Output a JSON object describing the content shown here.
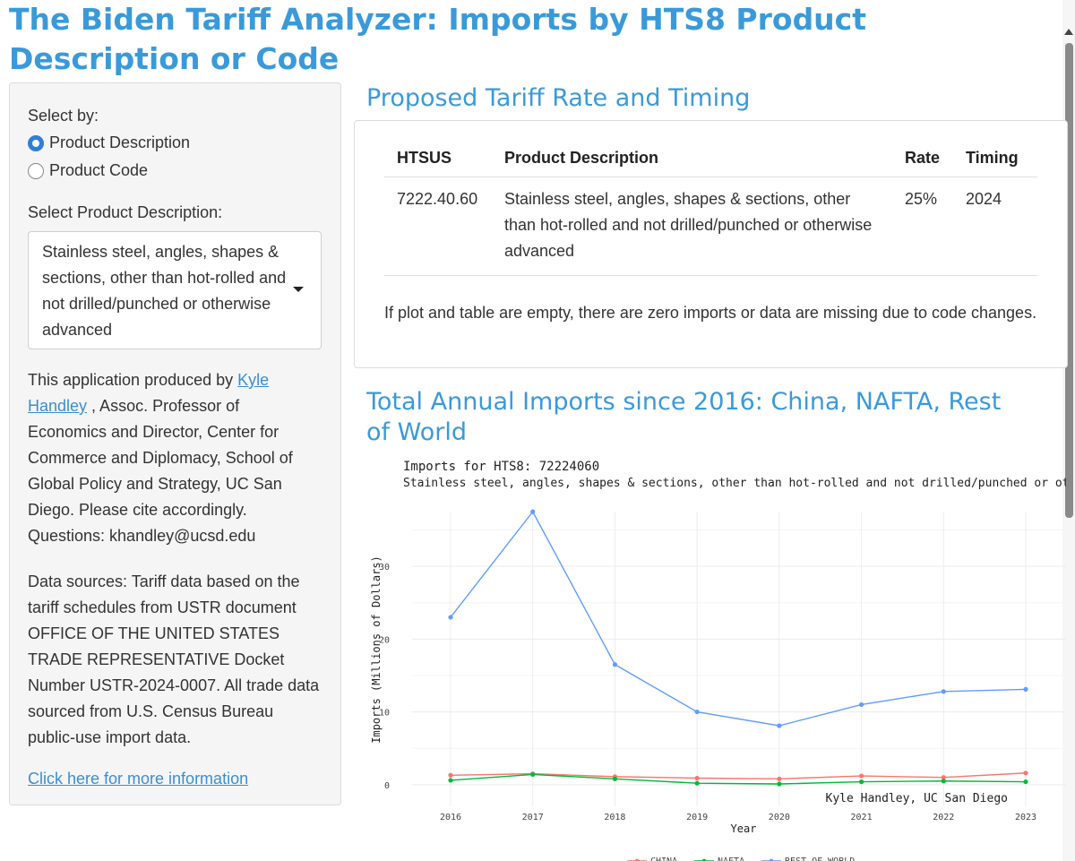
{
  "page": {
    "title": "The Biden Tariff Analyzer: Imports by HTS8 Product Description or Code"
  },
  "sidebar": {
    "select_by_label": "Select by:",
    "options": [
      {
        "label": "Product Description",
        "selected": true
      },
      {
        "label": "Product Code",
        "selected": false
      }
    ],
    "select_desc_label": "Select Product Description:",
    "selected_description": "Stainless steel, angles, shapes & sections, other than hot-rolled and not drilled/punched or otherwise advanced",
    "credit_prefix": "This application produced by ",
    "credit_link": "Kyle Handley",
    "credit_suffix": " , Assoc. Professor of Economics and Director, Center for Commerce and Diplomacy, School of Global Policy and Strategy, UC San Diego. Please cite accordingly. Questions: khandley@ucsd.edu",
    "data_sources": "Data sources: Tariff data based on the tariff schedules from USTR document OFFICE OF THE UNITED STATES TRADE REPRESENTATIVE Docket Number USTR-2024-0007. All trade data sourced from U.S. Census Bureau public-use import data.",
    "more_info_link": "Click here for more information"
  },
  "rate_section": {
    "title": "Proposed Tariff Rate and Timing",
    "columns": [
      "HTSUS",
      "Product Description",
      "Rate",
      "Timing"
    ],
    "rows": [
      {
        "htsus": "7222.40.60",
        "description": "Stainless steel, angles, shapes & sections, other than hot-rolled and not drilled/punched or otherwise advanced",
        "rate": "25%",
        "timing": "2024"
      }
    ],
    "note": "If plot and table are empty, there are zero imports or data are missing due to code changes."
  },
  "imports_section": {
    "title": "Total Annual Imports since 2016: China, NAFTA, Rest of World"
  },
  "chart_data": {
    "type": "line",
    "title": "Imports for HTS8: 72224060",
    "subtitle": "Stainless steel, angles, shapes & sections, other than hot-rolled and not drilled/punched or otherwise advanced",
    "xlabel": "Year",
    "ylabel": "Imports (Millions of Dollars)",
    "x": [
      2016,
      2017,
      2018,
      2019,
      2020,
      2021,
      2022,
      2023
    ],
    "yticks": [
      0,
      10,
      20,
      30
    ],
    "ylim": [
      -1.5,
      38.5
    ],
    "grid": true,
    "caption": "Kyle Handley, UC San Diego",
    "legend_position": "bottom",
    "series": [
      {
        "name": "CHINA",
        "color": "#f8766d",
        "values": [
          1.3,
          1.5,
          1.1,
          0.9,
          0.8,
          1.2,
          1.0,
          1.6
        ]
      },
      {
        "name": "NAFTA",
        "color": "#00ba38",
        "values": [
          0.6,
          1.4,
          0.8,
          0.2,
          0.1,
          0.4,
          0.5,
          0.4
        ]
      },
      {
        "name": "REST OF WORLD",
        "color": "#619cff",
        "values": [
          23.0,
          37.5,
          16.5,
          10.0,
          8.1,
          11.0,
          12.8,
          13.1
        ]
      }
    ]
  }
}
